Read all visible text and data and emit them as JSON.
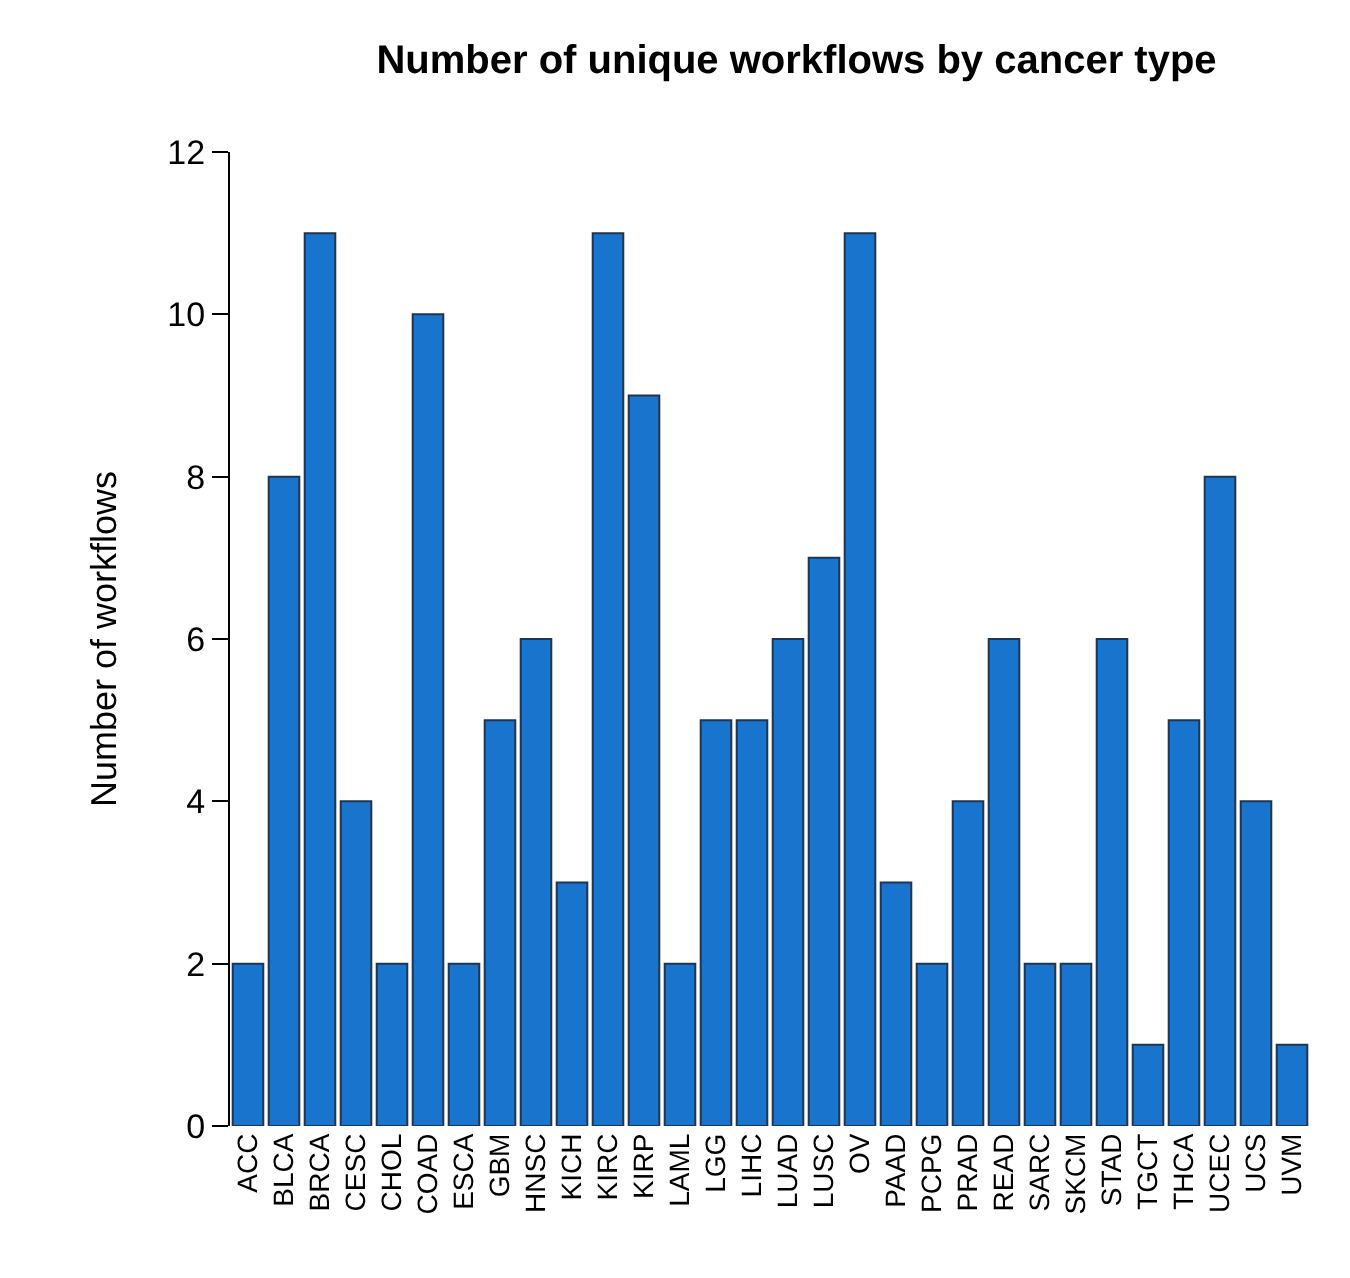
{
  "chart_data": {
    "type": "bar",
    "title": "Number of unique workflows by cancer type",
    "ylabel": "Number of workflows",
    "categories": [
      "ACC",
      "BLCA",
      "BRCA",
      "CESC",
      "CHOL",
      "COAD",
      "ESCA",
      "GBM",
      "HNSC",
      "KICH",
      "KIRC",
      "KIRP",
      "LAML",
      "LGG",
      "LIHC",
      "LUAD",
      "LUSC",
      "OV",
      "PAAD",
      "PCPG",
      "PRAD",
      "READ",
      "SARC",
      "SKCM",
      "STAD",
      "TGCT",
      "THCA",
      "UCEC",
      "UCS",
      "UVM"
    ],
    "values": [
      2,
      8,
      11,
      4,
      2,
      10,
      2,
      5,
      6,
      3,
      11,
      9,
      2,
      5,
      5,
      6,
      7,
      11,
      3,
      2,
      4,
      6,
      2,
      2,
      6,
      1,
      5,
      8,
      4,
      1
    ],
    "color": "#1874cd",
    "ylim": [
      0,
      12
    ],
    "yticks": [
      0,
      2,
      4,
      6,
      8,
      10,
      12
    ]
  }
}
